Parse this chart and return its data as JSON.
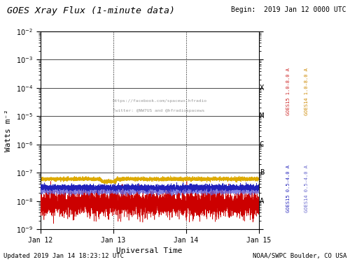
{
  "title": "GOES Xray Flux (1-minute data)",
  "begin_text": "Begin:  2019 Jan 12 0000 UTC",
  "xlabel": "Universal Time",
  "ylabel": "Watts m⁻²",
  "updated_text": "Updated 2019 Jan 14 18:23:12 UTC",
  "credit_text": "NOAA/SWPC Boulder, CO USA",
  "watermark_line1": "https://facebook.com/spacewx.hfradio",
  "watermark_line2": "Twitter: @NW7US and @hfradiospacews",
  "xmin": 0,
  "xmax": 4320,
  "ymin": 1e-09,
  "ymax": 0.01,
  "flare_class_labels": [
    "X",
    "M",
    "C",
    "B",
    "A"
  ],
  "flare_class_values": [
    0.0001,
    1e-05,
    1e-06,
    1e-07,
    1e-08
  ],
  "xtick_positions": [
    0,
    1440,
    2880,
    4320
  ],
  "xtick_labels": [
    "Jan 12",
    "Jan 13",
    "Jan 14",
    "Jan 15"
  ],
  "vline_positions": [
    1440,
    2880
  ],
  "color_goes15_long": "#cc0000",
  "color_goes14_long": "#ddaa00",
  "color_goes15_short": "#2222bb",
  "color_goes14_short": "#6666dd",
  "right_label1_color_red": "#cc2222",
  "right_label1_color_gold": "#cc8800",
  "right_label2_color_blue": "#2222bb",
  "right_label2_color_lblue": "#6666cc",
  "bg_color": "#ffffff",
  "plot_bg_color": "#ffffff",
  "seed": 42,
  "n_minutes": 4320,
  "goes15_long_base": 8e-09,
  "goes14_long_base": 6e-08,
  "goes15_short_base": 3e-08,
  "goes14_short_base": 2.2e-08
}
